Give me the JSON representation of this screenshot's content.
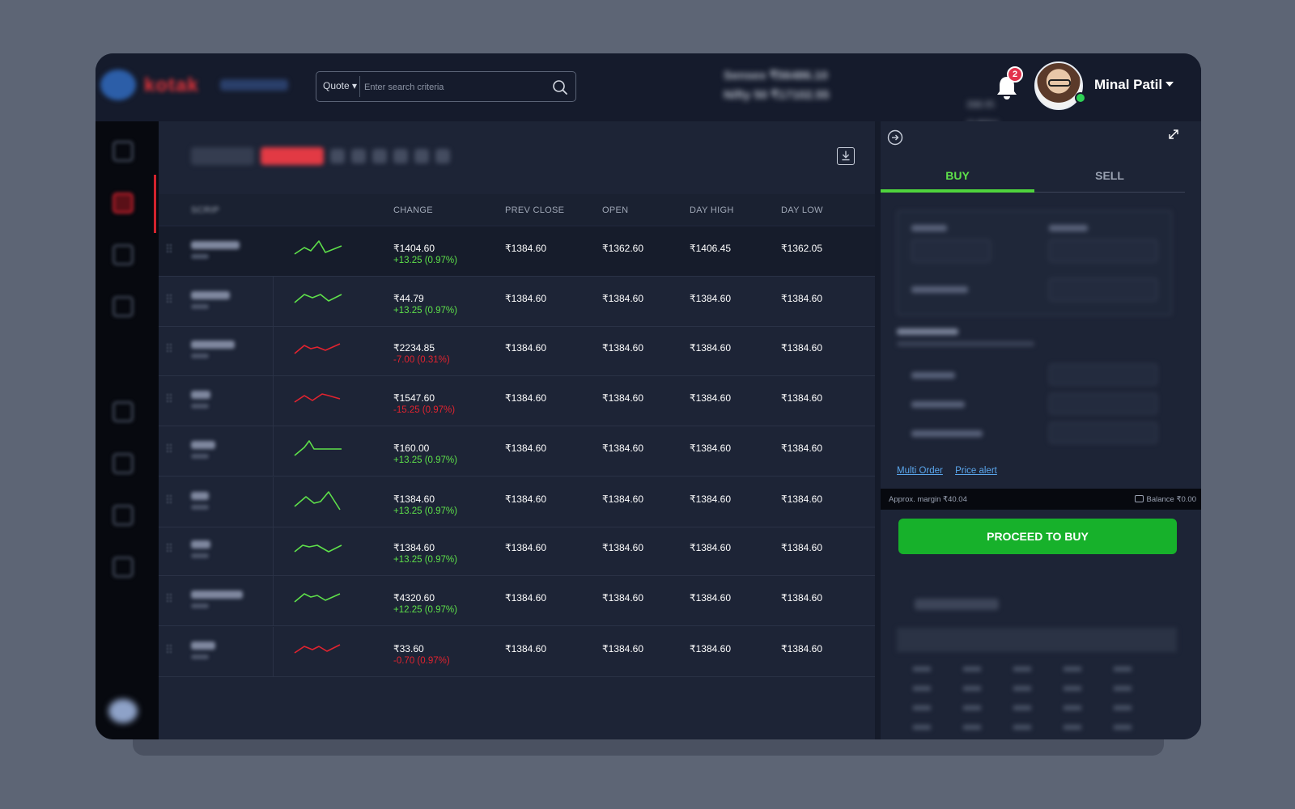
{
  "header": {
    "logo_text": "kotak",
    "search": {
      "segment": "Quote ▾",
      "placeholder": "Enter search criteria"
    },
    "indices": [
      {
        "name": "Sensex",
        "value": "₹56486.10",
        "change": "224.05 (0.40%)"
      },
      {
        "name": "Nifty 50",
        "value": "₹17102.55",
        "change": "142.35 (0.83%)"
      }
    ],
    "notifications_count": "2",
    "user_name": "Minal Patil"
  },
  "watchlist": {
    "columns": {
      "scrip": "SCRIP",
      "change": "CHANGE",
      "prev_close": "PREV CLOSE",
      "open": "OPEN",
      "day_high": "DAY HIGH",
      "day_low": "DAY LOW"
    },
    "rows": [
      {
        "price": "₹1404.60",
        "change": "+13.25 (0.97%)",
        "direction": "up",
        "prev_close": "₹1384.60",
        "open": "₹1362.60",
        "day_high": "₹1406.45",
        "day_low": "₹1362.05"
      },
      {
        "price": "₹44.79",
        "change": "+13.25 (0.97%)",
        "direction": "up",
        "prev_close": "₹1384.60",
        "open": "₹1384.60",
        "day_high": "₹1384.60",
        "day_low": "₹1384.60"
      },
      {
        "price": "₹2234.85",
        "change": "-7.00 (0.31%)",
        "direction": "down",
        "prev_close": "₹1384.60",
        "open": "₹1384.60",
        "day_high": "₹1384.60",
        "day_low": "₹1384.60"
      },
      {
        "price": "₹1547.60",
        "change": "-15.25 (0.97%)",
        "direction": "down",
        "prev_close": "₹1384.60",
        "open": "₹1384.60",
        "day_high": "₹1384.60",
        "day_low": "₹1384.60"
      },
      {
        "price": "₹160.00",
        "change": "+13.25 (0.97%)",
        "direction": "up",
        "prev_close": "₹1384.60",
        "open": "₹1384.60",
        "day_high": "₹1384.60",
        "day_low": "₹1384.60"
      },
      {
        "price": "₹1384.60",
        "change": "+13.25 (0.97%)",
        "direction": "up",
        "prev_close": "₹1384.60",
        "open": "₹1384.60",
        "day_high": "₹1384.60",
        "day_low": "₹1384.60"
      },
      {
        "price": "₹1384.60",
        "change": "+13.25 (0.97%)",
        "direction": "up",
        "prev_close": "₹1384.60",
        "open": "₹1384.60",
        "day_high": "₹1384.60",
        "day_low": "₹1384.60"
      },
      {
        "price": "₹4320.60",
        "change": "+12.25 (0.97%)",
        "direction": "up",
        "prev_close": "₹1384.60",
        "open": "₹1384.60",
        "day_high": "₹1384.60",
        "day_low": "₹1384.60"
      },
      {
        "price": "₹33.60",
        "change": "-0.70 (0.97%)",
        "direction": "down",
        "prev_close": "₹1384.60",
        "open": "₹1384.60",
        "day_high": "₹1384.60",
        "day_low": "₹1384.60"
      }
    ]
  },
  "order_panel": {
    "tabs": {
      "buy": "BUY",
      "sell": "SELL"
    },
    "links": {
      "multi_order": "Multi Order",
      "price_alert": "Price alert"
    },
    "approx_margin": "Approx. margin ₹40.04",
    "balance": "Balance ₹0.00",
    "proceed_label": "PROCEED TO BUY"
  },
  "colors": {
    "up": "#5ee04a",
    "down": "#e2232f",
    "buy_accent": "#17b12b",
    "brand_red": "#e8343a"
  }
}
